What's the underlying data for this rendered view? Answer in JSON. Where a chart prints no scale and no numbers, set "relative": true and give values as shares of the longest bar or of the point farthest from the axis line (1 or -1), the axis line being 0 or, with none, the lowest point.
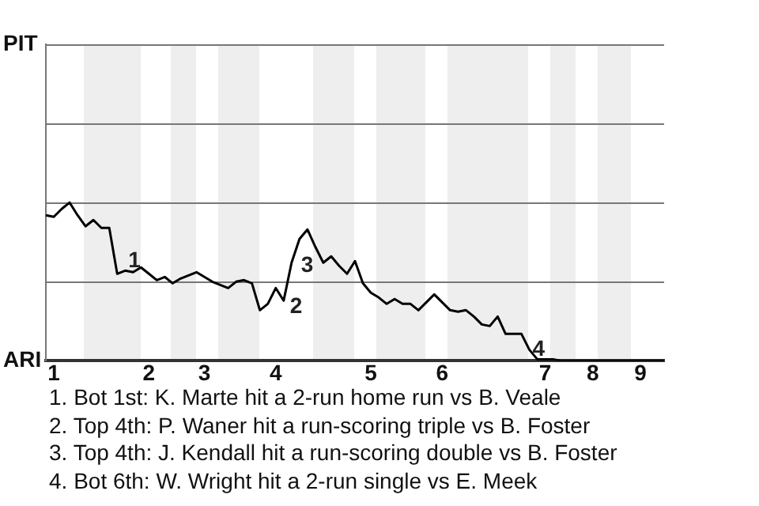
{
  "chart_data": {
    "type": "line",
    "relative": true,
    "categories": [
      null,
      "1",
      null,
      null,
      null,
      null,
      null,
      null,
      null,
      null,
      null,
      null,
      null,
      "2",
      null,
      null,
      null,
      null,
      null,
      null,
      "3",
      null,
      null,
      null,
      null,
      null,
      null,
      null,
      null,
      "4",
      null,
      null,
      null,
      null,
      null,
      null,
      null,
      null,
      null,
      null,
      null,
      "5",
      null,
      null,
      null,
      null,
      null,
      null,
      null,
      null,
      "6",
      null,
      null,
      null,
      null,
      null,
      null,
      null,
      null,
      null,
      null,
      null,
      null,
      "7",
      null,
      null,
      null,
      null,
      null,
      "8",
      null,
      null,
      null,
      null,
      null,
      "9",
      null,
      null,
      null
    ],
    "series": [
      {
        "color": "#000000",
        "values": [
          0.92,
          0.91,
          0.96,
          1,
          0.92,
          0.85,
          0.89,
          0.84,
          0.84,
          0.55,
          0.57,
          0.56,
          0.59,
          0.55,
          0.51,
          0.53,
          0.49,
          0.52,
          0.54,
          0.56,
          0.53,
          0.5,
          0.48,
          0.46,
          0.5,
          0.51,
          0.49,
          0.32,
          0.36,
          0.46,
          0.38,
          0.62,
          0.77,
          0.83,
          0.72,
          0.62,
          0.66,
          0.6,
          0.55,
          0.63,
          0.49,
          0.43,
          0.4,
          0.36,
          0.39,
          0.36,
          0.36,
          0.32,
          0.37,
          0.42,
          0.37,
          0.32,
          0.31,
          0.32,
          0.28,
          0.23,
          0.22,
          0.28,
          0.17,
          0.17,
          0.17,
          0.07,
          0.01,
          0.01,
          0.01,
          0,
          0,
          0,
          0,
          0,
          0,
          0,
          0,
          0,
          0,
          0,
          0,
          0,
          0
        ]
      }
    ],
    "marker": "none",
    "line_style": "solid",
    "ref_lines": [
      {
        "axis": "y",
        "value": 0.5,
        "color": "#777777"
      },
      {
        "axis": "y",
        "value": 1,
        "color": "#777777"
      },
      {
        "axis": "y",
        "value": 1.5,
        "color": "#777777"
      },
      {
        "axis": "y",
        "value": 2,
        "color": "#777777"
      }
    ],
    "annotations": [
      "PIT",
      "ARI",
      "1",
      "2",
      "3",
      "4",
      "1. Bot 1st: K. Marte hit a 2-run home run vs B. Veale",
      "2. Top 4th: P. Waner hit a run-scoring triple vs B. Foster",
      "3. Top 4th: J. Kendall hit a run-scoring double vs B. Foster",
      "4. Bot 6th: W. Wright hit a 2-run single vs E. Meek"
    ]
  }
}
